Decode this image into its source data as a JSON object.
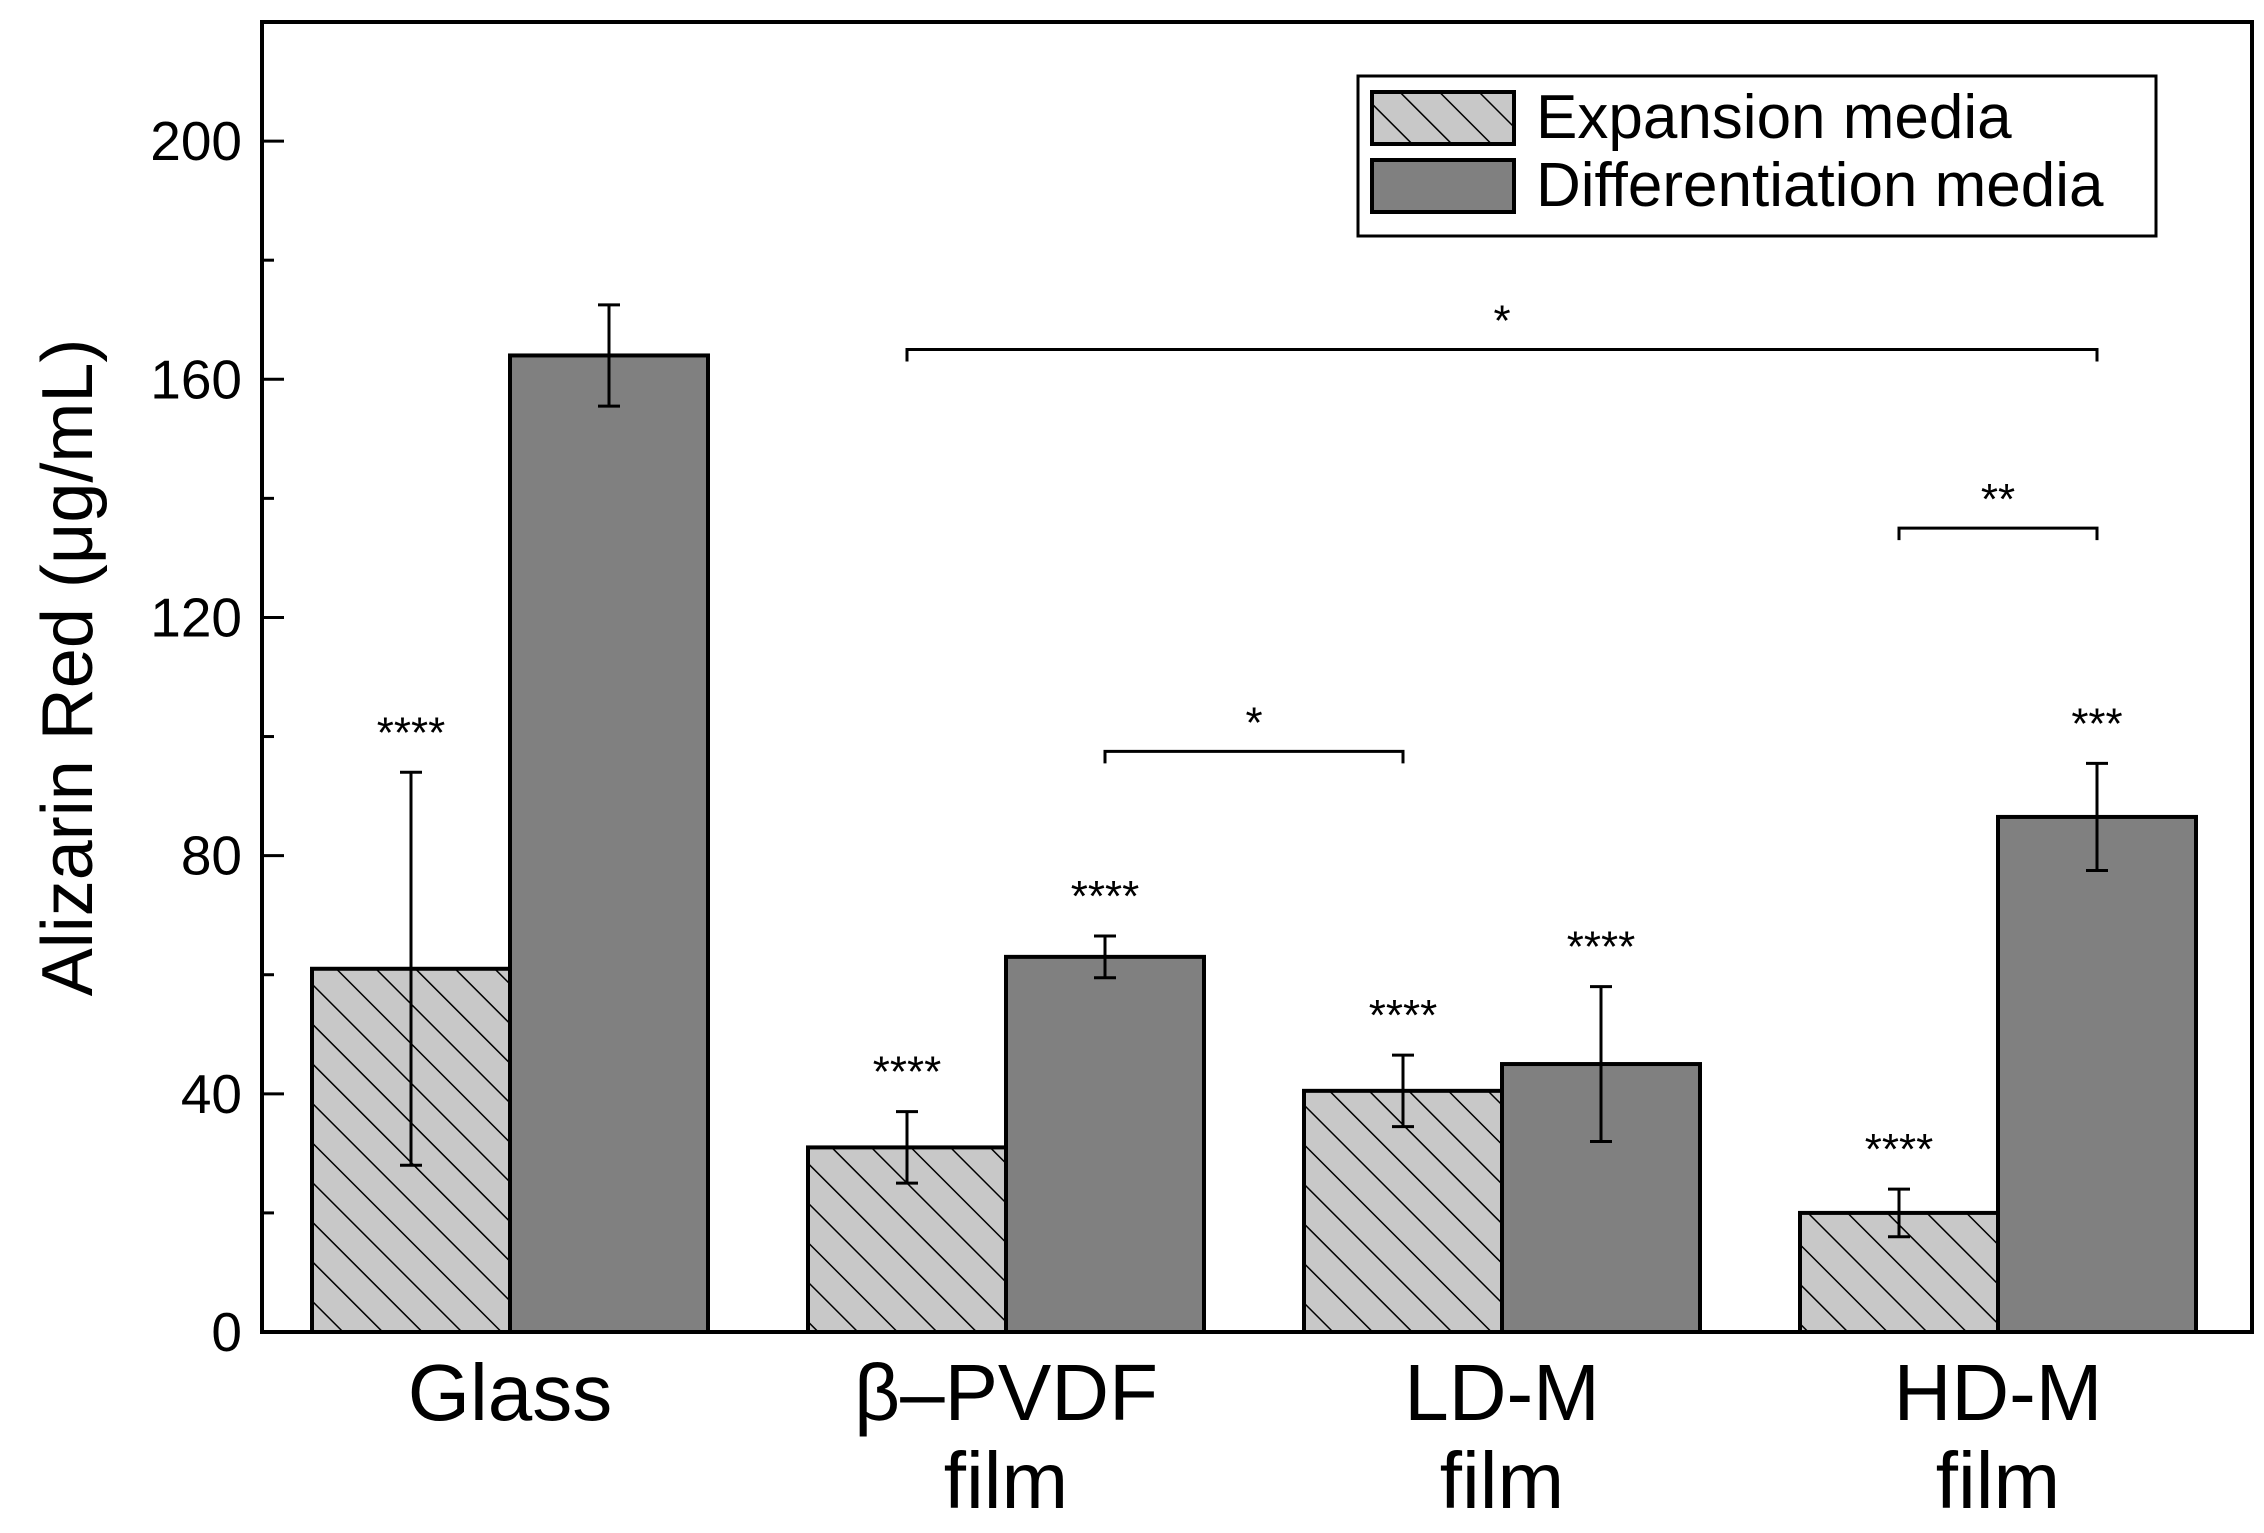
{
  "chart_data": {
    "type": "bar",
    "title": "",
    "xlabel": "",
    "ylabel": "Alizarin Red (μg/mL)",
    "ylim": [
      0,
      220
    ],
    "yticks": [
      0,
      40,
      80,
      120,
      160,
      200
    ],
    "grid": false,
    "legend_position": "top-right",
    "categories": [
      [
        "Glass"
      ],
      [
        "β–PVDF",
        "film"
      ],
      [
        "LD-M",
        "film"
      ],
      [
        "HD-M",
        "film"
      ]
    ],
    "series": [
      {
        "name": "Expansion media",
        "pattern": "hatched",
        "color": "#c8c8c8",
        "values": [
          61,
          31,
          40.5,
          20
        ],
        "errors": [
          33,
          6,
          6,
          4
        ],
        "significance": [
          "****",
          "****",
          "****",
          "****"
        ]
      },
      {
        "name": "Differentiation media",
        "pattern": "solid",
        "color": "#808080",
        "values": [
          164,
          63,
          45,
          86.5
        ],
        "errors": [
          8.5,
          3.5,
          13,
          9
        ],
        "significance": [
          "",
          "****",
          "****",
          "***"
        ]
      }
    ],
    "comparison_brackets": [
      {
        "from": [
          1,
          0
        ],
        "to": [
          3,
          1
        ],
        "label": "*",
        "level": 165
      },
      {
        "from": [
          1,
          1
        ],
        "to": [
          2,
          0
        ],
        "label": "*",
        "level": 97.5
      },
      {
        "from": [
          3,
          0
        ],
        "to": [
          3,
          1
        ],
        "label": "**",
        "level": 135
      }
    ]
  }
}
